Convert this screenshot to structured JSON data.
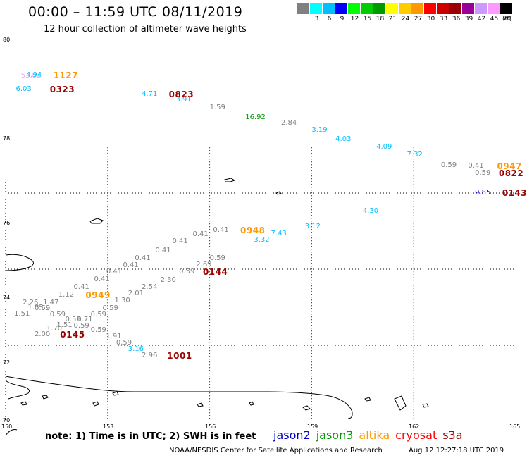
{
  "header": {
    "title": "00:00 – 11:59 UTC 08/11/2019",
    "subtitle": "12 hour collection of altimeter wave heights"
  },
  "legend": {
    "unit": "(ft)",
    "bins": [
      {
        "label": "",
        "color": "#808080"
      },
      {
        "label": "3",
        "color": "#00ffff"
      },
      {
        "label": "6",
        "color": "#00bfff"
      },
      {
        "label": "9",
        "color": "#0000ff"
      },
      {
        "label": "12",
        "color": "#00ff00"
      },
      {
        "label": "15",
        "color": "#00cc00"
      },
      {
        "label": "18",
        "color": "#009900"
      },
      {
        "label": "21",
        "color": "#ffff00"
      },
      {
        "label": "24",
        "color": "#ffcc00"
      },
      {
        "label": "27",
        "color": "#ff9900"
      },
      {
        "label": "30",
        "color": "#ff0000"
      },
      {
        "label": "33",
        "color": "#cc0000"
      },
      {
        "label": "36",
        "color": "#990000"
      },
      {
        "label": "39",
        "color": "#990099"
      },
      {
        "label": "42",
        "color": "#cc99ff"
      },
      {
        "label": "45",
        "color": "#ff99ff"
      },
      {
        "label": "70",
        "color": "#000000"
      }
    ]
  },
  "map": {
    "lat_labels": [
      "80",
      "78",
      "76",
      "74",
      "72",
      "70"
    ],
    "lon_labels": [
      "150",
      "153",
      "156",
      "159",
      "162",
      "165"
    ],
    "lon_range": [
      150,
      165
    ],
    "lat_range": [
      70,
      80
    ],
    "grid_lines": "dotted"
  },
  "observations": [
    {
      "text": "53.82",
      "lon": 150.45,
      "lat": 79.08,
      "color": "#ff99ff",
      "kind": "value"
    },
    {
      "text": "4.94",
      "lon": 150.6,
      "lat": 79.1,
      "color": "#00bfff",
      "kind": "value"
    },
    {
      "text": "1127",
      "lon": 151.4,
      "lat": 79.1,
      "color": "#ff9900",
      "kind": "time"
    },
    {
      "text": "6.03",
      "lon": 150.3,
      "lat": 78.72,
      "color": "#00bfff",
      "kind": "value"
    },
    {
      "text": "0323",
      "lon": 151.3,
      "lat": 78.72,
      "color": "#990000",
      "kind": "time"
    },
    {
      "text": "4.71",
      "lon": 154.0,
      "lat": 78.6,
      "color": "#00bfff",
      "kind": "value"
    },
    {
      "text": "0823",
      "lon": 154.8,
      "lat": 78.6,
      "color": "#990000",
      "kind": "time"
    },
    {
      "text": "3.91",
      "lon": 155.0,
      "lat": 78.44,
      "color": "#00bfff",
      "kind": "value"
    },
    {
      "text": "1.59",
      "lon": 156.0,
      "lat": 78.24,
      "color": "#808080",
      "kind": "value"
    },
    {
      "text": "16.92",
      "lon": 157.05,
      "lat": 77.98,
      "color": "#009900",
      "kind": "value"
    },
    {
      "text": "2.84",
      "lon": 158.1,
      "lat": 77.84,
      "color": "#808080",
      "kind": "value"
    },
    {
      "text": "3.19",
      "lon": 159.0,
      "lat": 77.64,
      "color": "#00bfff",
      "kind": "value"
    },
    {
      "text": "4.03",
      "lon": 159.7,
      "lat": 77.4,
      "color": "#00bfff",
      "kind": "value"
    },
    {
      "text": "4.09",
      "lon": 160.9,
      "lat": 77.2,
      "color": "#00bfff",
      "kind": "value"
    },
    {
      "text": "7.32",
      "lon": 161.8,
      "lat": 77.0,
      "color": "#00bfff",
      "kind": "value"
    },
    {
      "text": "0.59",
      "lon": 162.8,
      "lat": 76.72,
      "color": "#808080",
      "kind": "value"
    },
    {
      "text": "0.41",
      "lon": 163.6,
      "lat": 76.7,
      "color": "#808080",
      "kind": "value"
    },
    {
      "text": "0947",
      "lon": 164.45,
      "lat": 76.7,
      "color": "#ff9900",
      "kind": "time"
    },
    {
      "text": "0.59",
      "lon": 163.8,
      "lat": 76.52,
      "color": "#808080",
      "kind": "value"
    },
    {
      "text": "0822",
      "lon": 164.5,
      "lat": 76.52,
      "color": "#990000",
      "kind": "time"
    },
    {
      "text": "9.85",
      "lon": 163.8,
      "lat": 76.0,
      "color": "#0000ff",
      "kind": "value"
    },
    {
      "text": "0143",
      "lon": 164.6,
      "lat": 76.0,
      "color": "#990000",
      "kind": "time"
    },
    {
      "text": "4.30",
      "lon": 160.5,
      "lat": 75.52,
      "color": "#00bfff",
      "kind": "value"
    },
    {
      "text": "3.12",
      "lon": 158.8,
      "lat": 75.12,
      "color": "#00bfff",
      "kind": "value"
    },
    {
      "text": "0.41",
      "lon": 156.1,
      "lat": 75.02,
      "color": "#808080",
      "kind": "value"
    },
    {
      "text": "0948",
      "lon": 156.9,
      "lat": 75.02,
      "color": "#ff9900",
      "kind": "time"
    },
    {
      "text": "7.43",
      "lon": 157.8,
      "lat": 74.92,
      "color": "#00bfff",
      "kind": "value"
    },
    {
      "text": "0.41",
      "lon": 155.5,
      "lat": 74.9,
      "color": "#808080",
      "kind": "value"
    },
    {
      "text": "3.32",
      "lon": 157.3,
      "lat": 74.76,
      "color": "#00bfff",
      "kind": "value"
    },
    {
      "text": "0.41",
      "lon": 154.9,
      "lat": 74.72,
      "color": "#808080",
      "kind": "value"
    },
    {
      "text": "0.41",
      "lon": 154.4,
      "lat": 74.48,
      "color": "#808080",
      "kind": "value"
    },
    {
      "text": "0.41",
      "lon": 153.8,
      "lat": 74.28,
      "color": "#808080",
      "kind": "value"
    },
    {
      "text": "0.59",
      "lon": 156.0,
      "lat": 74.28,
      "color": "#808080",
      "kind": "value"
    },
    {
      "text": "2.69",
      "lon": 155.6,
      "lat": 74.12,
      "color": "#808080",
      "kind": "value"
    },
    {
      "text": "0.41",
      "lon": 153.45,
      "lat": 74.1,
      "color": "#808080",
      "kind": "value"
    },
    {
      "text": "0.41",
      "lon": 152.96,
      "lat": 73.92,
      "color": "#808080",
      "kind": "value"
    },
    {
      "text": "0.59",
      "lon": 155.1,
      "lat": 73.92,
      "color": "#808080",
      "kind": "value"
    },
    {
      "text": "0144",
      "lon": 155.8,
      "lat": 73.92,
      "color": "#990000",
      "kind": "time"
    },
    {
      "text": "0.41",
      "lon": 152.6,
      "lat": 73.72,
      "color": "#808080",
      "kind": "value"
    },
    {
      "text": "2.30",
      "lon": 154.55,
      "lat": 73.7,
      "color": "#808080",
      "kind": "value"
    },
    {
      "text": "0.41",
      "lon": 152.0,
      "lat": 73.52,
      "color": "#808080",
      "kind": "value"
    },
    {
      "text": "2.54",
      "lon": 154.0,
      "lat": 73.52,
      "color": "#808080",
      "kind": "value"
    },
    {
      "text": "1.12",
      "lon": 151.55,
      "lat": 73.32,
      "color": "#808080",
      "kind": "value"
    },
    {
      "text": "0949",
      "lon": 152.35,
      "lat": 73.32,
      "color": "#ff9900",
      "kind": "time"
    },
    {
      "text": "2.01",
      "lon": 153.6,
      "lat": 73.36,
      "color": "#808080",
      "kind": "value"
    },
    {
      "text": "2.26",
      "lon": 150.5,
      "lat": 73.12,
      "color": "#808080",
      "kind": "value"
    },
    {
      "text": "1.47",
      "lon": 151.1,
      "lat": 73.12,
      "color": "#808080",
      "kind": "value"
    },
    {
      "text": "1.30",
      "lon": 153.2,
      "lat": 73.16,
      "color": "#808080",
      "kind": "value"
    },
    {
      "text": "1.85",
      "lon": 150.65,
      "lat": 72.98,
      "color": "#808080",
      "kind": "value"
    },
    {
      "text": "0.59",
      "lon": 150.85,
      "lat": 72.96,
      "color": "#808080",
      "kind": "value"
    },
    {
      "text": "0.59",
      "lon": 152.85,
      "lat": 72.96,
      "color": "#808080",
      "kind": "value"
    },
    {
      "text": "1.51",
      "lon": 150.25,
      "lat": 72.82,
      "color": "#808080",
      "kind": "value"
    },
    {
      "text": "0.59",
      "lon": 151.3,
      "lat": 72.8,
      "color": "#808080",
      "kind": "value"
    },
    {
      "text": "0.59",
      "lon": 152.5,
      "lat": 72.8,
      "color": "#808080",
      "kind": "value"
    },
    {
      "text": "0.59",
      "lon": 151.75,
      "lat": 72.66,
      "color": "#808080",
      "kind": "value"
    },
    {
      "text": "0.71",
      "lon": 152.1,
      "lat": 72.66,
      "color": "#808080",
      "kind": "value"
    },
    {
      "text": "1.51",
      "lon": 151.5,
      "lat": 72.52,
      "color": "#808080",
      "kind": "value"
    },
    {
      "text": "0.59",
      "lon": 152.0,
      "lat": 72.5,
      "color": "#808080",
      "kind": "value"
    },
    {
      "text": "1.70",
      "lon": 151.2,
      "lat": 72.42,
      "color": "#808080",
      "kind": "value"
    },
    {
      "text": "0.59",
      "lon": 152.5,
      "lat": 72.38,
      "color": "#808080",
      "kind": "value"
    },
    {
      "text": "2.00",
      "lon": 150.85,
      "lat": 72.28,
      "color": "#808080",
      "kind": "value"
    },
    {
      "text": "0145",
      "lon": 151.6,
      "lat": 72.28,
      "color": "#990000",
      "kind": "time"
    },
    {
      "text": "1.91",
      "lon": 152.95,
      "lat": 72.22,
      "color": "#808080",
      "kind": "value"
    },
    {
      "text": "0.59",
      "lon": 153.25,
      "lat": 72.06,
      "color": "#808080",
      "kind": "value"
    },
    {
      "text": "3.16",
      "lon": 153.6,
      "lat": 71.88,
      "color": "#00bfff",
      "kind": "value"
    },
    {
      "text": "2.96",
      "lon": 154.0,
      "lat": 71.72,
      "color": "#808080",
      "kind": "value"
    },
    {
      "text": "1001",
      "lon": 154.75,
      "lat": 71.72,
      "color": "#990000",
      "kind": "time"
    }
  ],
  "footer": {
    "note": "note: 1) Time is in UTC; 2) SWH is in feet",
    "satellites": [
      {
        "name": "jason2",
        "color": "#0000cc"
      },
      {
        "name": "jason3",
        "color": "#009900"
      },
      {
        "name": "altika",
        "color": "#ff9900"
      },
      {
        "name": "cryosat",
        "color": "#ff0000"
      },
      {
        "name": "s3a",
        "color": "#990000"
      }
    ],
    "credit": "NOAA/NESDIS Center for Satellite Applications and Research",
    "stamp": "Aug 12 12:27:18 UTC 2019"
  }
}
